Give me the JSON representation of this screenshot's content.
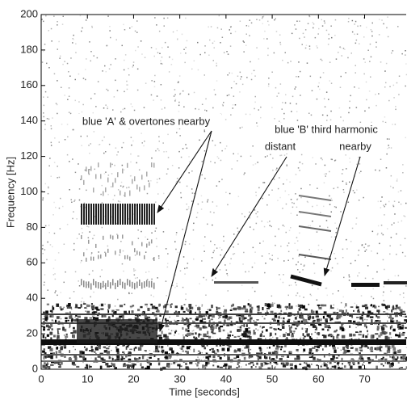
{
  "chart_data": {
    "type": "spectrogram",
    "x_label": "Time [seconds]",
    "y_label": "Frequency [Hz]",
    "xlim": [
      0,
      79
    ],
    "ylim": [
      0,
      200
    ],
    "xticks": [
      0,
      10,
      20,
      30,
      40,
      50,
      60,
      70
    ],
    "yticks": [
      0,
      20,
      40,
      60,
      80,
      100,
      120,
      140,
      160,
      180,
      200
    ],
    "annotations": [
      "blue 'A' & overtones nearby",
      "blue 'B' third harmonic",
      "distant",
      "nearby"
    ]
  }
}
